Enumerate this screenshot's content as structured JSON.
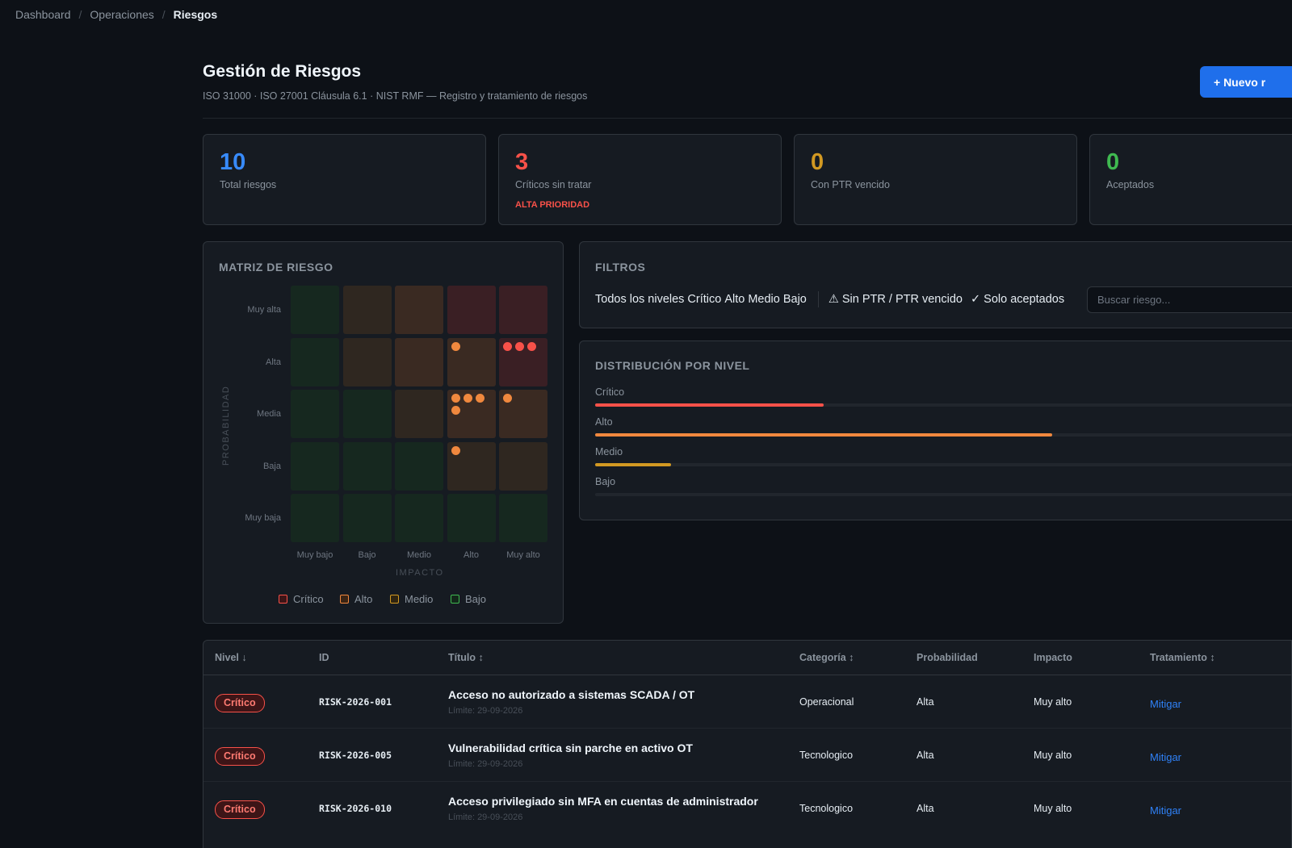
{
  "breadcrumb": [
    "Dashboard",
    "Operaciones",
    "Riesgos"
  ],
  "header": {
    "title": "Gestión de Riesgos",
    "subtitle": "ISO 31000 · ISO 27001 Cláusula 6.1 · NIST RMF — Registro y tratamiento de riesgos",
    "new_button": "+ Nuevo r"
  },
  "stats": [
    {
      "value": "10",
      "label": "Total riesgos",
      "color": "#388bfd"
    },
    {
      "value": "3",
      "label": "Críticos sin tratar",
      "tag": "ALTA PRIORIDAD",
      "color": "#f85149"
    },
    {
      "value": "0",
      "label": "Con PTR vencido",
      "color": "#d29922"
    },
    {
      "value": "0",
      "label": "Aceptados",
      "color": "#3fb950"
    }
  ],
  "matrix": {
    "title": "MATRIZ DE RIESGO",
    "probability_label": "PROBABILIDAD",
    "impact_label": "IMPACTO",
    "probability_levels": [
      "Muy alta",
      "Alta",
      "Media",
      "Baja",
      "Muy baja"
    ],
    "impact_levels": [
      "Muy bajo",
      "Bajo",
      "Medio",
      "Alto",
      "Muy alto"
    ],
    "cell_levels": [
      [
        "bajo",
        "medio",
        "alto",
        "critico",
        "critico"
      ],
      [
        "bajo",
        "medio",
        "alto",
        "alto",
        "critico"
      ],
      [
        "bajo",
        "bajo",
        "medio",
        "alto",
        "alto"
      ],
      [
        "bajo",
        "bajo",
        "bajo",
        "medio",
        "medio"
      ],
      [
        "bajo",
        "bajo",
        "bajo",
        "bajo",
        "bajo"
      ]
    ],
    "risk_counts": [
      [
        0,
        0,
        0,
        0,
        0
      ],
      [
        0,
        0,
        0,
        1,
        3
      ],
      [
        0,
        0,
        0,
        4,
        1
      ],
      [
        0,
        0,
        0,
        1,
        0
      ],
      [
        0,
        0,
        0,
        0,
        0
      ]
    ],
    "legend": [
      "Crítico",
      "Alto",
      "Medio",
      "Bajo"
    ],
    "colors": {
      "critico": "#f85149",
      "alto": "#f0883e",
      "medio": "#d29922",
      "bajo": "#3fb950"
    }
  },
  "filters": {
    "title": "FILTROS",
    "levels": [
      "Todos los niveles",
      "Crítico",
      "Alto",
      "Medio",
      "Bajo"
    ],
    "ptr": "⚠ Sin PTR / PTR vencido",
    "accepted": "✓ Solo aceptados",
    "search_placeholder": "Buscar riesgo..."
  },
  "distribution": {
    "title": "DISTRIBUCIÓN POR NIVEL",
    "levels": [
      {
        "label": "Crítico",
        "fraction": 0.3,
        "color": "#f85149"
      },
      {
        "label": "Alto",
        "fraction": 0.6,
        "color": "#f0883e"
      },
      {
        "label": "Medio",
        "fraction": 0.1,
        "color": "#d29922"
      },
      {
        "label": "Bajo",
        "fraction": 0.0,
        "color": "#3fb950"
      }
    ]
  },
  "table": {
    "columns": [
      "Nivel ↓",
      "ID",
      "Título ↕",
      "Categoría ↕",
      "Probabilidad",
      "Impacto",
      "Tratamiento ↕"
    ],
    "rows": [
      {
        "level": "Crítico",
        "id": "RISK-2026-001",
        "title": "Acceso no autorizado a sistemas SCADA / OT",
        "limit": "Límite: 29-09-2026",
        "category": "Operacional",
        "probability": "Alta",
        "impact": "Muy alto",
        "treatment": "Mitigar"
      },
      {
        "level": "Crítico",
        "id": "RISK-2026-005",
        "title": "Vulnerabilidad crítica sin parche en activo OT",
        "limit": "Límite: 29-09-2026",
        "category": "Tecnologico",
        "probability": "Alta",
        "impact": "Muy alto",
        "treatment": "Mitigar"
      },
      {
        "level": "Crítico",
        "id": "RISK-2026-010",
        "title": "Acceso privilegiado sin MFA en cuentas de administrador",
        "limit": "Límite: 29-09-2026",
        "category": "Tecnologico",
        "probability": "Alta",
        "impact": "Muy alto",
        "treatment": "Mitigar"
      }
    ]
  }
}
